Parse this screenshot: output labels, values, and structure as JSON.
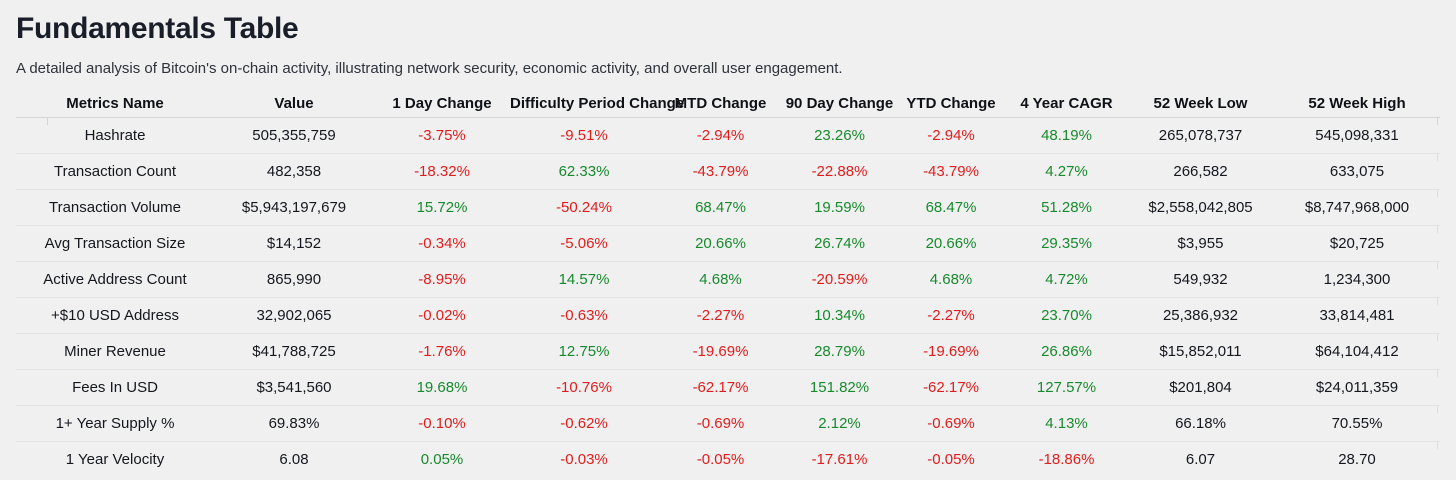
{
  "header": {
    "title": "Fundamentals Table",
    "subtitle": "A detailed analysis of Bitcoin's on-chain activity, illustrating network security, economic activity, and overall user engagement."
  },
  "colors": {
    "positive": "#178a2c",
    "negative": "#e01d1d",
    "title_text": "#191e29",
    "body_text": "#14171d",
    "background": "#f0f0f1"
  },
  "chart_data": {
    "type": "table",
    "title": "Fundamentals Table",
    "subtitle": "A detailed analysis of Bitcoin's on-chain activity, illustrating network security, economic activity, and overall user engagement.",
    "columns": [
      "Metrics Name",
      "Value",
      "1 Day Change",
      "Difficulty Period Change",
      "MTD Change",
      "90 Day Change",
      "YTD Change",
      "4 Year CAGR",
      "52 Week Low",
      "52 Week High"
    ],
    "column_keys": [
      "metric-name",
      "value",
      "change-1d",
      "change-difficulty-period",
      "change-mtd",
      "change-90d",
      "change-ytd",
      "cagr-4y",
      "52-week-low",
      "52-week-high"
    ],
    "rows": [
      [
        "Hashrate",
        "505,355,759",
        "-3.75%",
        "-9.51%",
        "-2.94%",
        "23.26%",
        "-2.94%",
        "48.19%",
        "265,078,737",
        "545,098,331"
      ],
      [
        "Transaction Count",
        "482,358",
        "-18.32%",
        "62.33%",
        "-43.79%",
        "-22.88%",
        "-43.79%",
        "4.27%",
        "266,582",
        "633,075"
      ],
      [
        "Transaction Volume",
        "$5,943,197,679",
        "15.72%",
        "-50.24%",
        "68.47%",
        "19.59%",
        "68.47%",
        "51.28%",
        "$2,558,042,805",
        "$8,747,968,000"
      ],
      [
        "Avg Transaction Size",
        "$14,152",
        "-0.34%",
        "-5.06%",
        "20.66%",
        "26.74%",
        "20.66%",
        "29.35%",
        "$3,955",
        "$20,725"
      ],
      [
        "Active Address Count",
        "865,990",
        "-8.95%",
        "14.57%",
        "4.68%",
        "-20.59%",
        "4.68%",
        "4.72%",
        "549,932",
        "1,234,300"
      ],
      [
        "+$10 USD Address",
        "32,902,065",
        "-0.02%",
        "-0.63%",
        "-2.27%",
        "10.34%",
        "-2.27%",
        "23.70%",
        "25,386,932",
        "33,814,481"
      ],
      [
        "Miner Revenue",
        "$41,788,725",
        "-1.76%",
        "12.75%",
        "-19.69%",
        "28.79%",
        "-19.69%",
        "26.86%",
        "$15,852,011",
        "$64,104,412"
      ],
      [
        "Fees In USD",
        "$3,541,560",
        "19.68%",
        "-10.76%",
        "-62.17%",
        "151.82%",
        "-62.17%",
        "127.57%",
        "$201,804",
        "$24,011,359"
      ],
      [
        "1+ Year Supply %",
        "69.83%",
        "-0.10%",
        "-0.62%",
        "-0.69%",
        "2.12%",
        "-0.69%",
        "4.13%",
        "66.18%",
        "70.55%"
      ],
      [
        "1 Year Velocity",
        "6.08",
        "0.05%",
        "-0.03%",
        "-0.05%",
        "-17.61%",
        "-0.05%",
        "-18.86%",
        "6.07",
        "28.70"
      ]
    ],
    "legend_position": "none",
    "grid": "horizontal-row-dividers"
  }
}
